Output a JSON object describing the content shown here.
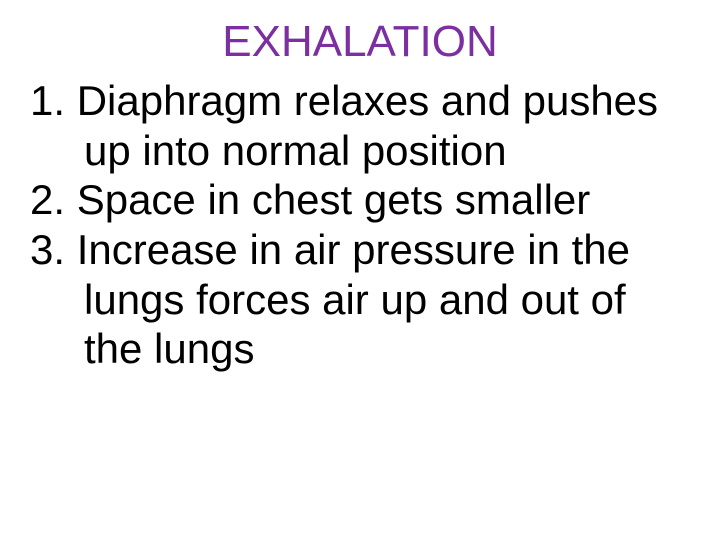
{
  "title": "EXHALATION",
  "title_color": "#7b2fa0",
  "body_color": "#000000",
  "background_color": "#ffffff",
  "font_family": "Comic Sans MS",
  "title_fontsize": 44,
  "body_fontsize": 42,
  "items": [
    {
      "num": "1.",
      "text": "Diaphragm relaxes and pushes up into normal position"
    },
    {
      "num": "2.",
      "text": "Space in chest gets smaller"
    },
    {
      "num": "3.",
      "text": "Increase in air pressure in the lungs forces air up and out of the lungs"
    }
  ]
}
